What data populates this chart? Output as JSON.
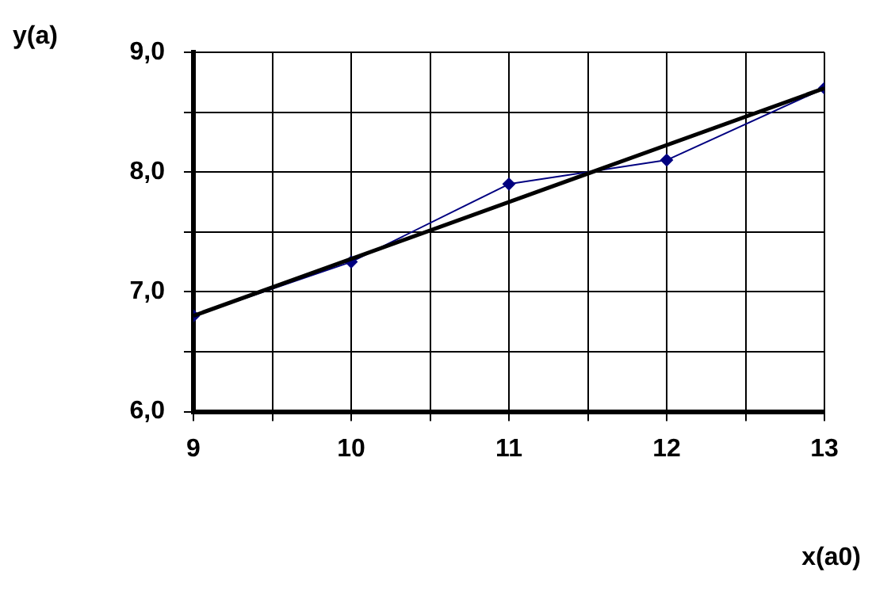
{
  "chart_data": {
    "type": "line",
    "xlabel": "x(a0)",
    "ylabel": "y(a)",
    "xlim": [
      9,
      13
    ],
    "xticks": [
      9,
      {
        "value": 9.5,
        "label": null
      },
      10,
      {
        "value": 10.5,
        "label": null
      },
      11,
      {
        "value": 11.5,
        "label": null
      },
      12,
      {
        "value": 12.5,
        "label": null
      },
      13
    ],
    "ylim": [
      6,
      9
    ],
    "yticks": [
      {
        "value": 6,
        "label": "6,0"
      },
      {
        "value": 6.5,
        "label": null
      },
      {
        "value": 7,
        "label": "7,0"
      },
      {
        "value": 7.5,
        "label": null
      },
      {
        "value": 8,
        "label": "8,0"
      },
      {
        "value": 8.5,
        "label": null
      },
      {
        "value": 9,
        "label": "9,0"
      }
    ],
    "grid": true,
    "series": [
      {
        "type": "line",
        "color": "#000080",
        "x": [
          9,
          10,
          11,
          12,
          13
        ],
        "values": [
          6.8,
          7.25,
          7.9,
          8.1,
          8.7
        ],
        "marker": "diamond"
      },
      {
        "type": "line",
        "color": "#000000",
        "x": [
          9,
          13
        ],
        "values": [
          6.8,
          8.7
        ],
        "marker": "none"
      }
    ]
  }
}
